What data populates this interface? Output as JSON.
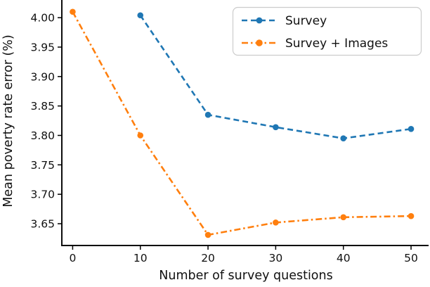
{
  "chart_data": {
    "type": "line",
    "title": "",
    "xlabel": "Number of survey questions",
    "ylabel": "Mean poverty rate error (%)",
    "xlim": [
      -1.6,
      52.8
    ],
    "ylim": [
      3.613,
      4.03
    ],
    "x_ticks": [
      0,
      10,
      20,
      30,
      40,
      50
    ],
    "x_tick_labels": [
      "0",
      "10",
      "20",
      "30",
      "40",
      "50"
    ],
    "y_ticks": [
      4.0,
      3.95,
      3.9,
      3.85,
      3.8,
      3.75,
      3.7,
      3.65
    ],
    "y_tick_labels": [
      "4.00",
      "3.95",
      "3.90",
      "3.85",
      "3.80",
      "3.75",
      "3.70",
      "3.65"
    ],
    "grid": false,
    "legend": {
      "position": "upper right",
      "border_color": "#cccccc"
    },
    "series": [
      {
        "name": "Survey",
        "color": "#1f77b4",
        "linestyle": "dashed",
        "marker": "circle",
        "x": [
          10,
          20,
          30,
          40,
          50
        ],
        "y": [
          4.004,
          3.835,
          3.814,
          3.795,
          3.811
        ]
      },
      {
        "name": "Survey + Images",
        "color": "#ff7f0e",
        "linestyle": "dashdot",
        "marker": "circle",
        "x": [
          0,
          10,
          20,
          30,
          40,
          50
        ],
        "y": [
          4.01,
          3.8,
          3.631,
          3.652,
          3.661,
          3.663
        ]
      }
    ]
  }
}
